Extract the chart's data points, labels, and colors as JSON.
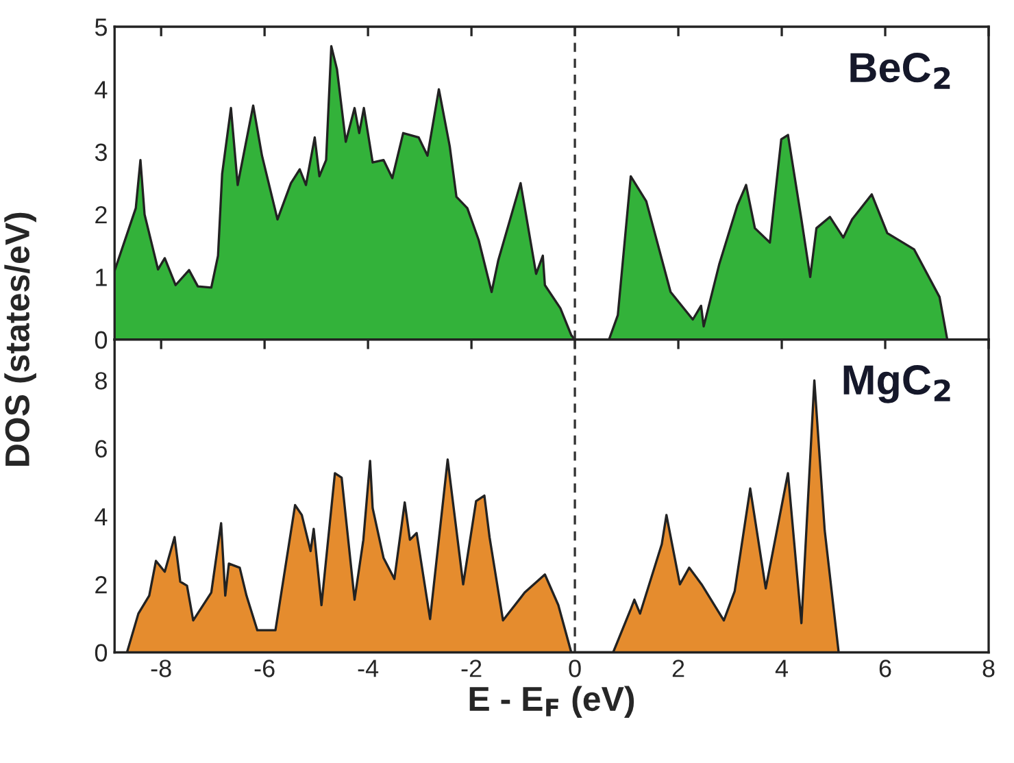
{
  "chart_data": [
    {
      "type": "area",
      "ylabel": "DOS (states/eV)",
      "annotations": [
        "BeC$_{2}$"
      ],
      "xlim": [
        -8.9,
        8
      ],
      "ylim": [
        0,
        5
      ],
      "xticks": [
        -8,
        -6,
        -4,
        -2,
        0,
        2,
        4,
        6,
        8
      ],
      "yticks": [
        0,
        1,
        2,
        3,
        4,
        5
      ],
      "tick_labels": "y",
      "grid": false,
      "legend": false,
      "ref_lines": [
        {
          "axis": "x",
          "value": 0,
          "color": "#333333",
          "line_style": "dashed"
        }
      ],
      "series": [
        {
          "color": "#33b23a",
          "x": [
            -8.9,
            -8.83,
            -8.49,
            -8.4,
            -8.32,
            -8.06,
            -7.93,
            -7.72,
            -7.46,
            -7.29,
            -7.03,
            -6.9,
            -6.82,
            -6.65,
            -6.52,
            -6.22,
            -6.05,
            -5.75,
            -5.49,
            -5.32,
            -5.2,
            -5.03,
            -4.94,
            -4.81,
            -4.71,
            -4.6,
            -4.43,
            -4.26,
            -4.17,
            -4.08,
            -3.91,
            -3.7,
            -3.53,
            -3.32,
            -3.02,
            -2.85,
            -2.63,
            -2.42,
            -2.29,
            -2.08,
            -1.86,
            -1.61,
            -1.48,
            -1.05,
            -0.75,
            -0.62,
            -0.58,
            -0.28,
            -0.07,
            0.0,
            0.66,
            0.83,
            1.08,
            1.38,
            1.85,
            2.28,
            2.44,
            2.49,
            2.79,
            3.14,
            3.31,
            3.48,
            3.77,
            3.99,
            4.12,
            4.38,
            4.55,
            4.67,
            4.93,
            5.19,
            5.36,
            5.74,
            6.04,
            6.56,
            7.05,
            7.2
          ],
          "values": [
            1.1,
            1.27,
            2.1,
            2.87,
            2.0,
            1.12,
            1.3,
            0.87,
            1.11,
            0.85,
            0.83,
            1.34,
            2.65,
            3.7,
            2.47,
            3.74,
            2.94,
            1.92,
            2.5,
            2.72,
            2.47,
            3.23,
            2.61,
            2.87,
            4.69,
            4.32,
            3.16,
            3.7,
            3.3,
            3.7,
            2.83,
            2.87,
            2.58,
            3.3,
            3.23,
            2.94,
            4.0,
            3.09,
            2.28,
            2.1,
            1.59,
            0.76,
            1.27,
            2.5,
            1.05,
            1.34,
            0.87,
            0.5,
            0.07,
            0,
            0,
            0.39,
            2.61,
            2.21,
            0.76,
            0.32,
            0.54,
            0.21,
            1.2,
            2.14,
            2.47,
            1.78,
            1.55,
            3.2,
            3.27,
            1.92,
            1.0,
            1.78,
            1.96,
            1.63,
            1.92,
            2.32,
            1.7,
            1.44,
            0.68,
            0
          ]
        }
      ]
    },
    {
      "type": "area",
      "xlabel": "E - E$_{F}$ (eV)",
      "annotations": [
        "MgC$_{2}$"
      ],
      "xlim": [
        -8.9,
        8
      ],
      "ylim": [
        0,
        9.2
      ],
      "xticks": [
        -8,
        -6,
        -4,
        -2,
        0,
        2,
        4,
        6,
        8
      ],
      "yticks": [
        0,
        2,
        4,
        6,
        8
      ],
      "grid": false,
      "legend": false,
      "ref_lines": [
        {
          "axis": "x",
          "value": 0,
          "color": "#333333",
          "line_style": "dashed"
        }
      ],
      "series": [
        {
          "color": "#e58c2e",
          "x": [
            -8.66,
            -8.44,
            -8.23,
            -8.1,
            -7.93,
            -7.74,
            -7.63,
            -7.5,
            -7.38,
            -7.03,
            -6.84,
            -6.76,
            -6.69,
            -6.48,
            -6.35,
            -6.14,
            -5.79,
            -5.41,
            -5.28,
            -5.11,
            -5.05,
            -4.9,
            -4.64,
            -4.51,
            -4.26,
            -4.09,
            -3.96,
            -3.91,
            -3.7,
            -3.49,
            -3.29,
            -3.19,
            -3.06,
            -2.8,
            -2.46,
            -2.16,
            -1.91,
            -1.75,
            -1.65,
            -1.39,
            -0.97,
            -0.58,
            -0.32,
            -0.07,
            0.74,
            1.08,
            1.15,
            1.26,
            1.68,
            1.77,
            2.03,
            2.21,
            2.45,
            2.88,
            3.09,
            3.39,
            3.69,
            4.12,
            4.38,
            4.63,
            4.83,
            5.1
          ],
          "values": [
            0,
            1.14,
            1.67,
            2.69,
            2.37,
            3.39,
            2.08,
            1.96,
            0.94,
            1.76,
            3.8,
            1.67,
            2.61,
            2.49,
            1.67,
            0.65,
            0.65,
            4.33,
            4.04,
            2.98,
            3.63,
            1.39,
            5.27,
            5.14,
            1.55,
            3.31,
            5.63,
            4.24,
            2.78,
            2.16,
            4.41,
            3.31,
            3.51,
            0.98,
            5.67,
            2.0,
            4.45,
            4.61,
            3.39,
            0.94,
            1.76,
            2.29,
            1.39,
            0,
            0,
            1.27,
            1.55,
            1.14,
            3.18,
            4.04,
            2.0,
            2.49,
            2.0,
            0.94,
            1.8,
            4.82,
            1.88,
            5.27,
            0.86,
            8.0,
            3.59,
            0
          ]
        }
      ]
    }
  ]
}
